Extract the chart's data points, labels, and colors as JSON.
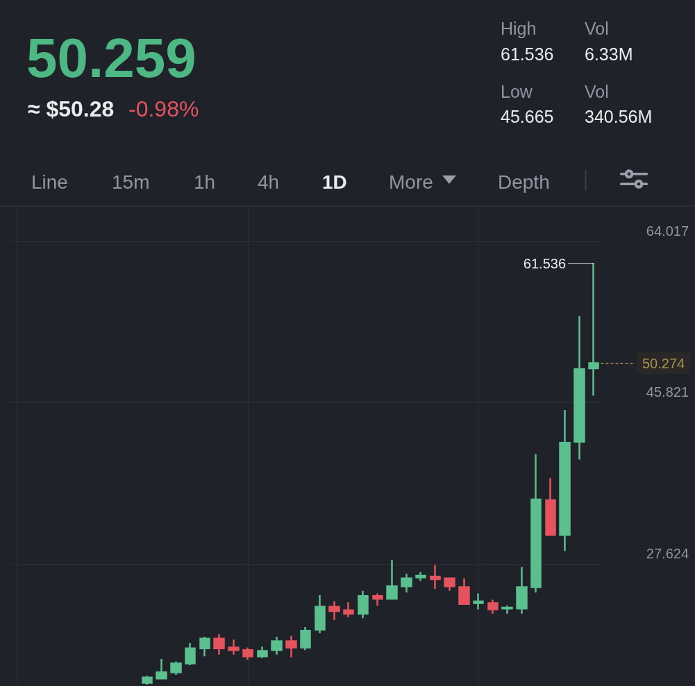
{
  "chart_data": {
    "type": "candlestick",
    "title": "50.259",
    "subtitle": "≈ $50.28",
    "annotations": [
      "-0.98%",
      "High",
      "61.536",
      "Vol",
      "6.33M",
      "Low",
      "45.665",
      "Vol",
      "340.56M",
      "Line",
      "15m",
      "1h",
      "4h",
      "1D",
      "More",
      "Depth",
      "61.536"
    ],
    "categories": [
      null,
      null,
      null,
      null,
      null,
      null,
      null,
      null,
      null,
      null,
      null,
      null,
      null,
      null,
      null,
      null,
      null,
      null,
      null,
      null,
      null,
      null,
      null,
      null,
      null,
      null,
      null,
      null,
      null,
      null,
      null,
      null,
      null,
      null,
      null,
      null,
      null,
      null,
      null,
      null,
      null
    ],
    "ohlc": [
      null,
      null,
      null,
      null,
      null,
      null,
      null,
      null,
      null,
      [
        14.2,
        15.0,
        14.0,
        14.8
      ],
      [
        14.7,
        16.9,
        14.6,
        15.4
      ],
      [
        15.4,
        16.6,
        15.1,
        16.4
      ],
      [
        16.4,
        18.7,
        16.2,
        18.1
      ],
      [
        18.1,
        19.4,
        17.2,
        19.2
      ],
      [
        19.2,
        19.7,
        17.4,
        18.1
      ],
      [
        18.2,
        19.1,
        17.4,
        17.9
      ],
      [
        17.9,
        18.2,
        16.8,
        17.2
      ],
      [
        17.2,
        18.3,
        17.0,
        17.8
      ],
      [
        17.9,
        19.4,
        17.4,
        18.9
      ],
      [
        18.9,
        19.5,
        17.1,
        18.2
      ],
      [
        18.2,
        20.5,
        17.9,
        20.1
      ],
      [
        20.2,
        24.1,
        19.8,
        22.8
      ],
      [
        22.8,
        23.4,
        21.3,
        22.3
      ],
      [
        22.4,
        23.3,
        21.6,
        22.0
      ],
      [
        22.0,
        24.6,
        21.5,
        24.0
      ],
      [
        24.0,
        24.3,
        22.9,
        23.7
      ],
      [
        23.7,
        28.1,
        23.6,
        25.1
      ],
      [
        25.1,
        26.5,
        24.4,
        26.0
      ],
      [
        26.1,
        26.7,
        25.7,
        26.3
      ],
      [
        26.2,
        27.5,
        24.8,
        25.9
      ],
      [
        26.0,
        26.0,
        24.6,
        25.1
      ],
      [
        25.0,
        26.0,
        23.0,
        23.1
      ],
      [
        23.2,
        24.3,
        22.5,
        23.4
      ],
      [
        23.2,
        23.6,
        22.0,
        22.5
      ],
      [
        22.6,
        22.9,
        22.0,
        22.7
      ],
      [
        22.6,
        27.3,
        22.0,
        25.0
      ],
      [
        25.0,
        40.0,
        24.4,
        34.9
      ],
      [
        34.8,
        37.3,
        30.8,
        30.9
      ],
      [
        30.9,
        45.0,
        29.1,
        41.3
      ],
      [
        41.4,
        55.6,
        39.4,
        49.6
      ],
      [
        49.7,
        61.536,
        46.6,
        50.274
      ]
    ],
    "colors": [
      null,
      null,
      null,
      null,
      null,
      null,
      null,
      null,
      null,
      "#5cbf8e",
      "#5cbf8e",
      "#5cbf8e",
      "#5cbf8e",
      "#5cbf8e",
      "#e5545e",
      "#e5545e",
      "#e5545e",
      "#5cbf8e",
      "#5cbf8e",
      "#e5545e",
      "#5cbf8e",
      "#5cbf8e",
      "#e5545e",
      "#e5545e",
      "#5cbf8e",
      "#e5545e",
      "#5cbf8e",
      "#5cbf8e",
      "#5cbf8e",
      "#e5545e",
      "#e5545e",
      "#e5545e",
      "#5cbf8e",
      "#e5545e",
      "#5cbf8e",
      "#5cbf8e",
      "#5cbf8e",
      "#e5545e",
      "#5cbf8e",
      "#5cbf8e",
      "#5cbf8e"
    ],
    "ylim": [
      13.85,
      67.93
    ],
    "yticks": [
      27.624,
      45.821,
      64.017
    ],
    "grid": true,
    "tick_labels": "y",
    "ref_lines": [
      {
        "axis": "y",
        "value": 50.274,
        "label": "50.274",
        "color": "#e3bd62",
        "line_style": "dashed"
      }
    ]
  }
}
